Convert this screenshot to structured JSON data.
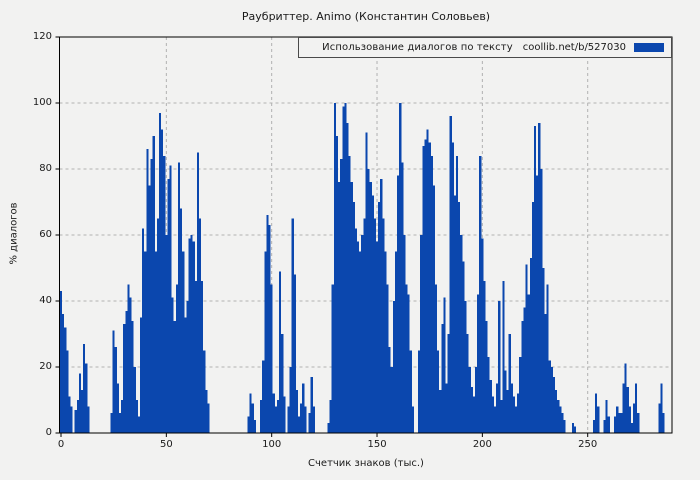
{
  "title": "Раубриттер. Animo (Константин Соловьев)",
  "legend": {
    "text": "Использование диалогов по тексту",
    "url": "coollib.net/b/527030"
  },
  "colors": {
    "bar": "#0b47ae",
    "legend_swatch": "#0b47ae",
    "background": "#f2f2f1",
    "grid": "#b1b1b1",
    "spine": "#000000",
    "text": "#1a1a1a"
  },
  "chart_data": {
    "type": "bar",
    "title": "Раубриттер. Animo (Константин Соловьев)",
    "xlabel": "Счетчик знаков (тыс.)",
    "ylabel": "% диалогов",
    "legend_entry": "Использование диалогов по тексту  coollib.net/b/527030",
    "legend_position": "upper right",
    "grid": true,
    "xlim": [
      0,
      290
    ],
    "ylim": [
      0,
      120
    ],
    "xticks": [
      0,
      50,
      100,
      150,
      200,
      250
    ],
    "yticks": [
      0,
      20,
      40,
      60,
      80,
      100,
      120
    ],
    "x_start": 0,
    "x_step": 1,
    "values": [
      43,
      36,
      32,
      25,
      11,
      8,
      0,
      7,
      10,
      18,
      13,
      27,
      21,
      8,
      0,
      0,
      0,
      0,
      0,
      0,
      0,
      0,
      0,
      0,
      6,
      31,
      26,
      15,
      6,
      10,
      33,
      37,
      45,
      41,
      34,
      20,
      10,
      5,
      35,
      62,
      55,
      86,
      75,
      83,
      90,
      55,
      65,
      97,
      92,
      84,
      60,
      77,
      81,
      41,
      34,
      45,
      82,
      68,
      55,
      35,
      40,
      59,
      60,
      58,
      46,
      85,
      65,
      46,
      25,
      13,
      9,
      0,
      0,
      0,
      0,
      0,
      0,
      0,
      0,
      0,
      0,
      0,
      0,
      0,
      0,
      0,
      0,
      0,
      0,
      5,
      12,
      9,
      4,
      0,
      0,
      10,
      22,
      55,
      66,
      63,
      45,
      12,
      8,
      10,
      49,
      30,
      11,
      0,
      8,
      20,
      65,
      48,
      13,
      5,
      9,
      15,
      8,
      0,
      6,
      17,
      8,
      0,
      0,
      0,
      0,
      0,
      0,
      3,
      10,
      45,
      100,
      90,
      76,
      83,
      99,
      100,
      94,
      84,
      76,
      70,
      62,
      58,
      55,
      60,
      65,
      91,
      80,
      76,
      72,
      65,
      58,
      70,
      77,
      65,
      55,
      45,
      26,
      20,
      40,
      55,
      78,
      100,
      82,
      60,
      45,
      42,
      25,
      8,
      0,
      0,
      25,
      60,
      87,
      89,
      92,
      88,
      84,
      75,
      45,
      25,
      13,
      33,
      41,
      15,
      30,
      96,
      88,
      72,
      84,
      70,
      60,
      52,
      40,
      30,
      20,
      14,
      11,
      20,
      42,
      84,
      59,
      46,
      34,
      23,
      16,
      11,
      8,
      15,
      40,
      10,
      46,
      19,
      13,
      30,
      15,
      11,
      8,
      12,
      23,
      34,
      38,
      51,
      42,
      53,
      70,
      93,
      78,
      94,
      80,
      50,
      36,
      45,
      22,
      20,
      17,
      13,
      10,
      8,
      6,
      4,
      0,
      0,
      0,
      3,
      2,
      0,
      0,
      0,
      0,
      0,
      0,
      0,
      0,
      4,
      12,
      8,
      0,
      0,
      4,
      10,
      5,
      0,
      0,
      5,
      8,
      6,
      6,
      15,
      21,
      14,
      8,
      3,
      9,
      15,
      6,
      0,
      0,
      0,
      0,
      0,
      0,
      0,
      0,
      0,
      9,
      15,
      6,
      0,
      0
    ]
  }
}
